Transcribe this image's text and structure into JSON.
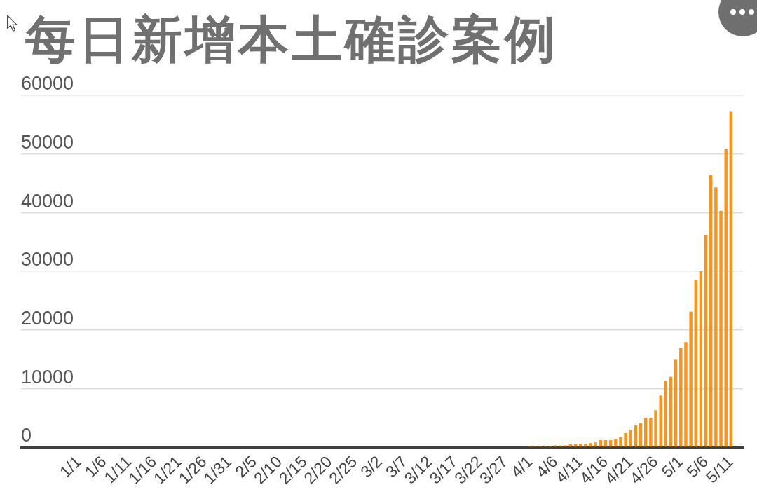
{
  "chart_data": {
    "type": "bar",
    "title": "每日新增本土確診案例",
    "categories": [
      "1/1",
      null,
      null,
      null,
      null,
      "1/6",
      null,
      null,
      null,
      null,
      "1/11",
      null,
      null,
      null,
      null,
      "1/16",
      null,
      null,
      null,
      null,
      "1/21",
      null,
      null,
      null,
      null,
      "1/26",
      null,
      null,
      null,
      null,
      "1/31",
      null,
      null,
      null,
      null,
      "2/5",
      null,
      null,
      null,
      null,
      "2/10",
      null,
      null,
      null,
      null,
      "2/15",
      null,
      null,
      null,
      null,
      "2/20",
      null,
      null,
      null,
      null,
      "2/25",
      null,
      null,
      null,
      null,
      "3/2",
      null,
      null,
      null,
      null,
      "3/7",
      null,
      null,
      null,
      null,
      "3/12",
      null,
      null,
      null,
      null,
      "3/17",
      null,
      null,
      null,
      null,
      "3/22",
      null,
      null,
      null,
      null,
      "3/27",
      null,
      null,
      null,
      null,
      "4/1",
      null,
      null,
      null,
      null,
      "4/6",
      null,
      null,
      null,
      null,
      "4/11",
      null,
      null,
      null,
      null,
      "4/16",
      null,
      null,
      null,
      null,
      "4/21",
      null,
      null,
      null,
      null,
      "4/26",
      null,
      null,
      null,
      null,
      "5/1",
      null,
      null,
      null,
      null,
      "5/6",
      null,
      null,
      null,
      null,
      "5/11"
    ],
    "values": [
      0,
      0,
      0,
      0,
      0,
      0,
      0,
      0,
      0,
      0,
      0,
      0,
      0,
      0,
      0,
      0,
      0,
      0,
      0,
      0,
      0,
      0,
      0,
      0,
      0,
      0,
      0,
      0,
      0,
      0,
      0,
      0,
      0,
      0,
      0,
      0,
      0,
      0,
      0,
      0,
      0,
      0,
      0,
      0,
      0,
      0,
      0,
      0,
      0,
      0,
      0,
      0,
      0,
      0,
      0,
      0,
      0,
      0,
      0,
      0,
      0,
      0,
      0,
      0,
      0,
      0,
      0,
      0,
      0,
      0,
      0,
      0,
      0,
      0,
      0,
      0,
      0,
      0,
      0,
      0,
      0,
      0,
      0,
      0,
      0,
      0,
      0,
      0,
      0,
      0,
      200,
      200,
      200,
      200,
      200,
      300,
      300,
      300,
      500,
      500,
      500,
      500,
      700,
      800,
      1200,
      1200,
      1200,
      1400,
      1700,
      2400,
      3000,
      3700,
      4100,
      5000,
      5000,
      6300,
      8800,
      11300,
      12000,
      15000,
      16900,
      17900,
      23100,
      28500,
      30000,
      36200,
      46400,
      44300,
      40300,
      50800,
      57200
    ],
    "color": "#f7941d",
    "ylim": [
      0,
      60000
    ],
    "yticks": [
      0,
      10000,
      20000,
      30000,
      40000,
      50000,
      60000
    ],
    "grid": "y"
  }
}
